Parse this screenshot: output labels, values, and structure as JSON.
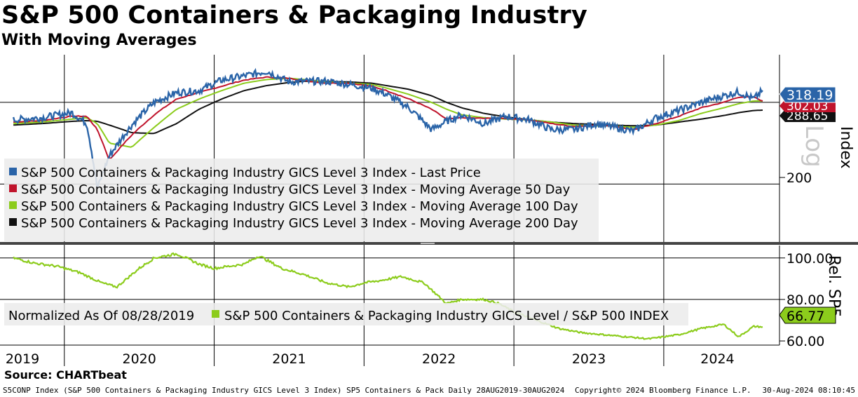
{
  "header": {
    "title": "S&P 500 Containers & Packaging Industry",
    "subtitle": "With Moving Averages"
  },
  "source": "Source: CHARTbeat",
  "footer": {
    "left": "S5CONP Index (S&P 500 Containers & Packaging Industry GICS Level 3 Index) SP5 Containers & Pack  Daily 28AUG2019-30AUG2024",
    "copyright": "Copyright© 2024 Bloomberg Finance L.P.",
    "timestamp": "30-Aug-2024 08:10:45"
  },
  "colors": {
    "price": "#2a64a8",
    "ma50": "#c0142c",
    "ma100": "#8ccc1c",
    "ma200": "#111111",
    "relative": "#8ccc1c",
    "grid": "#000000"
  },
  "chart_data": [
    {
      "type": "line",
      "title": "S&P 500 Containers & Packaging Industry",
      "subtitle": "With Moving Averages",
      "ylabel": "Index",
      "yscale": "Log",
      "yscale_label": "Log",
      "ylim": [
        150,
        380
      ],
      "yticks": [
        200
      ],
      "x": [
        2019.66,
        2019.85,
        2020.05,
        2020.15,
        2020.22,
        2020.3,
        2020.45,
        2020.6,
        2020.75,
        2020.9,
        2021.05,
        2021.2,
        2021.35,
        2021.5,
        2021.6,
        2021.75,
        2021.9,
        2022.05,
        2022.15,
        2022.3,
        2022.45,
        2022.55,
        2022.65,
        2022.8,
        2022.95,
        2023.1,
        2023.25,
        2023.4,
        2023.55,
        2023.65,
        2023.8,
        2023.95,
        2024.1,
        2024.25,
        2024.4,
        2024.5,
        2024.6,
        2024.66
      ],
      "series": [
        {
          "name": "S&P 500 Containers & Packaging Industry GICS Level 3 Index - Last Price",
          "values": [
            275,
            278,
            285,
            270,
            195,
            230,
            268,
            300,
            315,
            318,
            335,
            342,
            350,
            332,
            333,
            333,
            328,
            322,
            312,
            292,
            262,
            273,
            282,
            270,
            280,
            275,
            262,
            262,
            270,
            266,
            260,
            278,
            288,
            300,
            310,
            316,
            305,
            318.19
          ]
        },
        {
          "name": "S&P 500 Containers & Packaging Industry GICS Level 3 Index - Moving Average 50 Day",
          "values": [
            272,
            274,
            280,
            280,
            262,
            225,
            255,
            282,
            305,
            315,
            325,
            335,
            340,
            338,
            334,
            330,
            330,
            325,
            318,
            305,
            290,
            276,
            278,
            277,
            277,
            275,
            270,
            266,
            268,
            267,
            262,
            270,
            280,
            292,
            300,
            308,
            308,
            302.03
          ]
        },
        {
          "name": "S&P 500 Containers & Packaging Industry GICS Level 3 Index - Moving Average 100 Day",
          "values": [
            270,
            272,
            276,
            278,
            270,
            245,
            240,
            265,
            290,
            305,
            318,
            330,
            336,
            338,
            336,
            332,
            330,
            328,
            322,
            312,
            300,
            290,
            282,
            278,
            276,
            275,
            272,
            268,
            267,
            267,
            265,
            268,
            274,
            284,
            292,
            298,
            302,
            302
          ]
        },
        {
          "name": "S&P 500 Containers & Packaging Industry GICS Level 3 Index - Moving Average 200 Day",
          "values": [
            268,
            270,
            273,
            274,
            273,
            268,
            258,
            257,
            270,
            290,
            305,
            318,
            326,
            331,
            333,
            333,
            332,
            330,
            326,
            320,
            310,
            300,
            292,
            284,
            279,
            275,
            272,
            270,
            269,
            268,
            267,
            268,
            272,
            276,
            281,
            285,
            288,
            288.65
          ]
        }
      ],
      "last_values": {
        "price": "318.19",
        "ma50": "302.03",
        "ma200": "288.65"
      },
      "legend_placement": "bottom-left"
    },
    {
      "type": "line",
      "ylabel": "Rel. SP5",
      "ylim": [
        58,
        106
      ],
      "yticks": [
        "100.00",
        "80.00",
        "60.00"
      ],
      "note": "Normalized As Of 08/28/2019",
      "x": [
        2019.66,
        2019.8,
        2019.95,
        2020.1,
        2020.25,
        2020.35,
        2020.5,
        2020.6,
        2020.75,
        2020.9,
        2021.0,
        2021.1,
        2021.2,
        2021.3,
        2021.45,
        2021.6,
        2021.75,
        2021.9,
        2022.0,
        2022.1,
        2022.25,
        2022.4,
        2022.55,
        2022.65,
        2022.8,
        2022.9,
        2023.0,
        2023.15,
        2023.3,
        2023.45,
        2023.6,
        2023.75,
        2023.9,
        2024.1,
        2024.25,
        2024.4,
        2024.5,
        2024.6,
        2024.66
      ],
      "series": [
        {
          "name": "S&P 500 Containers & Packaging Industry GICS Level / S&P 500 INDEX",
          "values": [
            100,
            97.5,
            96,
            93,
            88,
            86,
            95,
            100,
            102,
            97,
            95,
            96,
            97,
            101,
            95,
            92,
            88,
            86,
            88,
            89,
            91,
            88,
            78,
            80,
            80,
            78,
            74,
            70,
            66,
            64,
            63,
            62,
            61,
            63,
            66,
            68,
            62,
            67,
            66.77
          ]
        }
      ],
      "last_value": "66.77",
      "legend_placement": "bottom-left"
    }
  ],
  "x_axis": {
    "ticks": [
      "2019",
      "2020",
      "2021",
      "2022",
      "2023",
      "2024"
    ]
  }
}
